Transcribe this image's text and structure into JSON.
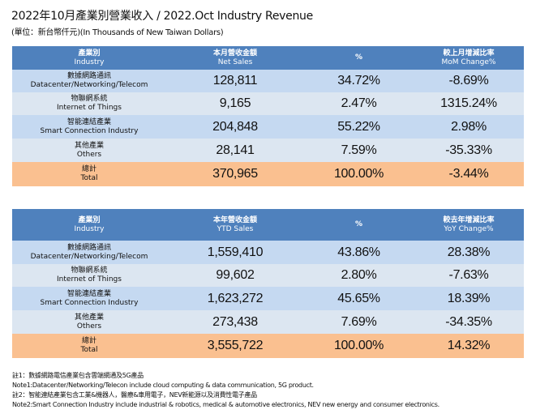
{
  "title": "2022年10月產業別營業收入 / 2022.Oct Industry Revenue",
  "unit": "(單位：新台幣仟元)(In Thousands of New Taiwan Dollars)",
  "monthly": {
    "headers": [
      {
        "zh": "產業別",
        "en": "Industry"
      },
      {
        "zh": "本月營收金額",
        "en": "Net Sales"
      },
      {
        "zh": "%",
        "en": ""
      },
      {
        "zh": "較上月增減比率",
        "en": "MoM Change%"
      }
    ],
    "rows": [
      {
        "zh": "數據網路通訊",
        "en": "Datacenter/Networking/Telecom",
        "value": "128,811",
        "pct": "34.72%",
        "change": "-8.69%"
      },
      {
        "zh": "物聯網系統",
        "en": "Internet of Things",
        "value": "9,165",
        "pct": "2.47%",
        "change": "1315.24%"
      },
      {
        "zh": "智能連結產業",
        "en": "Smart Connection Industry",
        "value": "204,848",
        "pct": "55.22%",
        "change": "2.98%"
      },
      {
        "zh": "其他產業",
        "en": "Others",
        "value": "28,141",
        "pct": "7.59%",
        "change": "-35.33%"
      },
      {
        "zh": "總計",
        "en": "Total",
        "value": "370,965",
        "pct": "100.00%",
        "change": "-3.44%"
      }
    ]
  },
  "ytd": {
    "headers": [
      {
        "zh": "產業別",
        "en": "Industry"
      },
      {
        "zh": "本年營收金額",
        "en": "YTD Sales"
      },
      {
        "zh": "%",
        "en": ""
      },
      {
        "zh": "較去年增減比率",
        "en": "YoY Change%"
      }
    ],
    "rows": [
      {
        "zh": "數據網路通訊",
        "en": "Datacenter/Networking/Telecom",
        "value": "1,559,410",
        "pct": "43.86%",
        "change": "28.38%"
      },
      {
        "zh": "物聯網系統",
        "en": "Internet of Things",
        "value": "99,602",
        "pct": "2.80%",
        "change": "-7.63%"
      },
      {
        "zh": "智能連結產業",
        "en": "Smart Connection Industry",
        "value": "1,623,272",
        "pct": "45.65%",
        "change": "18.39%"
      },
      {
        "zh": "其他產業",
        "en": "Others",
        "value": "273,438",
        "pct": "7.69%",
        "change": "-34.35%"
      },
      {
        "zh": "總計",
        "en": "Total",
        "value": "3,555,722",
        "pct": "100.00%",
        "change": "14.32%"
      }
    ]
  },
  "notes": [
    "註1：數據網路電信產業包含雲端網通及5G產品",
    "Note1:Datacenter/Networking/Telecon include cloud computing & data communication, 5G product.",
    "註2：智能連結產業包含工業&機器人，醫療&車用電子，NEV新能源以及消費性電子產品",
    "Note2:Smart Connection Industry include industrial & robotics, medical & automotive electronics, NEV new energy and consumer electronics."
  ],
  "colors": {
    "header": "#4f81bd",
    "row_a": "#c5d9f1",
    "row_b": "#dce6f1",
    "total": "#fac090"
  }
}
